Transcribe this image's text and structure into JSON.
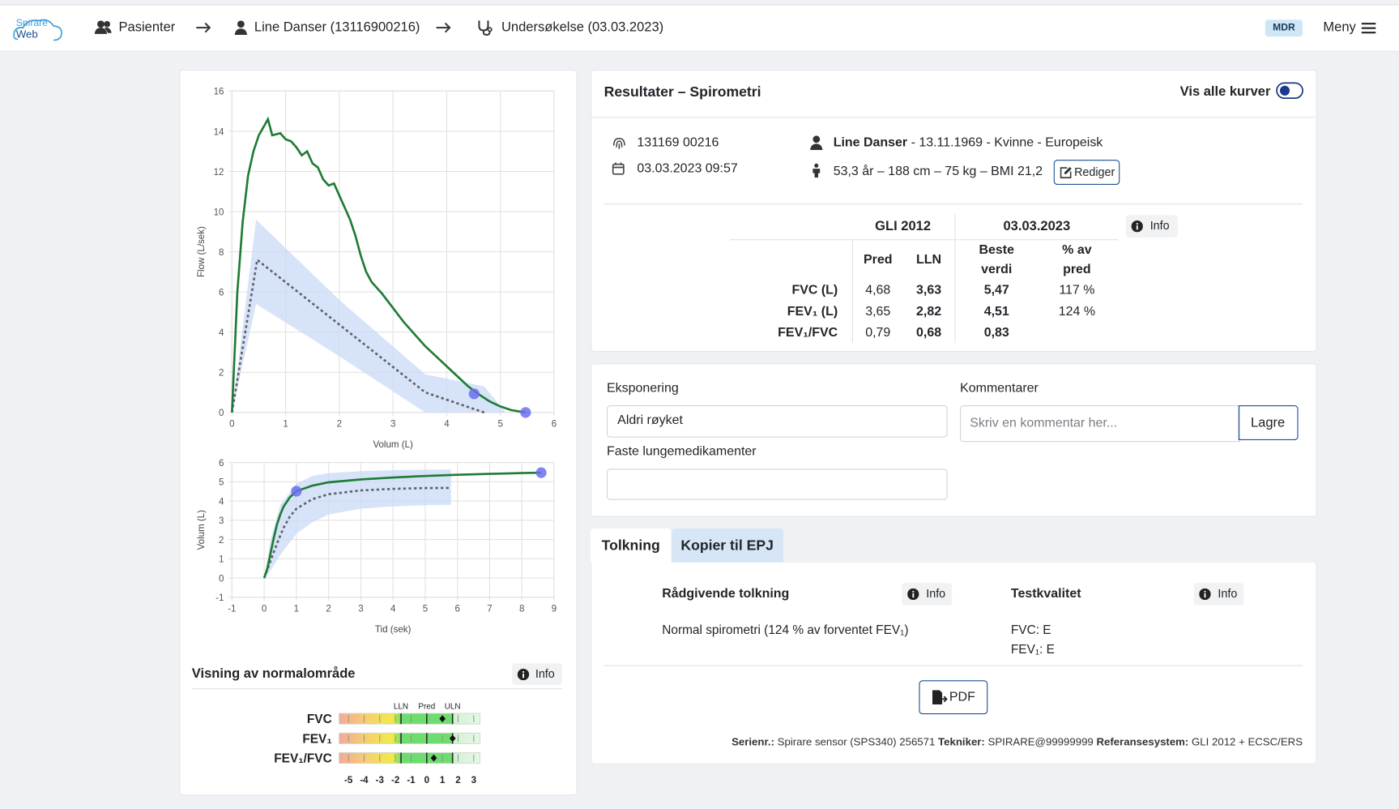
{
  "header": {
    "logo_top": "Spirare",
    "logo_bottom": "Web",
    "breadcrumbs": [
      "Pasienter",
      "Line Danser (13116900216)",
      "Undersøkelse (03.03.2023)"
    ],
    "badge": "MDR",
    "menu": "Meny"
  },
  "results": {
    "title": "Resultater – Spirometri",
    "toggle_label": "Vis alle kurver",
    "patient_id": "131169 00216",
    "exam_time": "03.03.2023 09:57",
    "patient_name": "Line Danser",
    "patient_details": "- 13.11.1969 - Kvinne - Europeisk",
    "body_metrics": "53,3 år – 188 cm – 75 kg – BMI 21,2",
    "edit_button": "Rediger",
    "table": {
      "reference": "GLI 2012",
      "date": "03.03.2023",
      "info": "Info",
      "columns": [
        "Pred",
        "LLN",
        "Beste verdi",
        "% av pred"
      ],
      "rows": [
        {
          "label": "FVC (L)",
          "cells": [
            "4,68",
            "3,63",
            "5,47",
            "117 %"
          ]
        },
        {
          "label": "FEV₁ (L)",
          "cells": [
            "3,65",
            "2,82",
            "4,51",
            "124 %"
          ]
        },
        {
          "label": "FEV₁/FVC",
          "cells": [
            "0,79",
            "0,68",
            "0,83"
          ]
        }
      ]
    }
  },
  "form": {
    "exposure_label": "Eksponering",
    "exposure_value": "Aldri røyket",
    "meds_label": "Faste lungemedikamenter",
    "comments_label": "Kommentarer",
    "comments_placeholder": "Skriv en kommentar her...",
    "save_button": "Lagre"
  },
  "tabs": [
    "Tolkning",
    "Kopier til EPJ"
  ],
  "interpretation": {
    "advice_title": "Rådgivende tolkning",
    "advice_info": "Info",
    "advice_text": "Normal spirometri (124 % av forventet FEV₁)",
    "quality_title": "Testkvalitet",
    "quality_info": "Info",
    "quality_lines": [
      "FVC: E",
      "FEV₁: E"
    ],
    "pdf_button": "PDF",
    "footer": [
      {
        "label": "Serienr.:",
        "value": "Spirare sensor (SPS340) 256571"
      },
      {
        "label": "Tekniker:",
        "value": "SPIRARE@99999999"
      },
      {
        "label": "Referansesystem:",
        "value": "GLI 2012 + ECSC/ERS"
      }
    ]
  },
  "chart_data": [
    {
      "type": "line",
      "xlabel": "Volum (L)",
      "ylabel": "Flow (L/sek)",
      "xlim": [
        0,
        6
      ],
      "ylim": [
        0,
        16
      ],
      "xticks": [
        0,
        1,
        2,
        3,
        4,
        5,
        6
      ],
      "yticks": [
        0,
        2,
        4,
        6,
        8,
        10,
        12,
        14,
        16
      ],
      "grid": true,
      "band": {
        "color": "#c9d9f5",
        "x": [
          0,
          0.45,
          2.0,
          3.6,
          4.7,
          5.1
        ],
        "upper": [
          0,
          9.6,
          5.6,
          1.9,
          1.3,
          0
        ],
        "lower": [
          0,
          5.4,
          2.8,
          0,
          0,
          0
        ]
      },
      "series": [
        {
          "color": "#1e7b34",
          "x": [
            0,
            0.05,
            0.1,
            0.2,
            0.3,
            0.4,
            0.5,
            0.67,
            0.75,
            0.9,
            1.0,
            1.1,
            1.2,
            1.3,
            1.4,
            1.5,
            1.6,
            1.7,
            1.8,
            1.9,
            2.0,
            2.1,
            2.2,
            2.3,
            2.4,
            2.5,
            2.6,
            2.8,
            3.0,
            3.2,
            3.4,
            3.6,
            3.8,
            4.0,
            4.2,
            4.4,
            4.6,
            4.8,
            5.0,
            5.2,
            5.47
          ],
          "y": [
            0,
            3,
            6,
            9.5,
            11.8,
            13,
            13.8,
            14.6,
            13.8,
            13.9,
            13.6,
            13.5,
            13.2,
            12.8,
            13.0,
            12.4,
            12.2,
            11.6,
            11.3,
            11.4,
            10.8,
            10.2,
            9.6,
            8.8,
            7.8,
            7.0,
            6.5,
            5.9,
            5.2,
            4.5,
            3.9,
            3.3,
            2.8,
            2.3,
            1.8,
            1.3,
            0.9,
            0.55,
            0.3,
            0.12,
            0
          ]
        },
        {
          "color": "#5f6368",
          "dash": true,
          "x": [
            0,
            0.47,
            3.6,
            4.7
          ],
          "y": [
            0,
            7.6,
            1.0,
            0
          ]
        }
      ],
      "markers": {
        "color": "#6b6ff0",
        "points": [
          {
            "x": 4.51,
            "y": 0.93
          },
          {
            "x": 5.47,
            "y": 0
          }
        ]
      }
    },
    {
      "type": "line",
      "xlabel": "Tid (sek)",
      "ylabel": "Volum (L)",
      "xlim": [
        -1,
        9
      ],
      "ylim": [
        -1,
        6
      ],
      "xticks": [
        -1,
        0,
        1,
        2,
        3,
        4,
        5,
        6,
        7,
        8,
        9
      ],
      "yticks": [
        -1,
        0,
        1,
        2,
        3,
        4,
        5,
        6
      ],
      "grid": true,
      "band": {
        "color": "#c9d9f5",
        "x": [
          0,
          0.2,
          0.5,
          1,
          1.5,
          2,
          3,
          4,
          5,
          5.8
        ],
        "upper": [
          0,
          2.0,
          3.8,
          4.9,
          5.3,
          5.45,
          5.55,
          5.6,
          5.62,
          5.63
        ],
        "lower": [
          0,
          0.4,
          1.2,
          2.3,
          2.9,
          3.3,
          3.6,
          3.72,
          3.78,
          3.8
        ]
      },
      "series": [
        {
          "color": "#1e7b34",
          "x": [
            0,
            0.1,
            0.2,
            0.3,
            0.4,
            0.5,
            0.6,
            0.8,
            1.0,
            1.5,
            2,
            3,
            4,
            5,
            6,
            7,
            8,
            8.6
          ],
          "y": [
            0,
            0.5,
            1.3,
            2.1,
            2.8,
            3.3,
            3.7,
            4.2,
            4.51,
            4.8,
            4.97,
            5.12,
            5.22,
            5.3,
            5.36,
            5.41,
            5.45,
            5.47
          ]
        },
        {
          "color": "#5f6368",
          "dash": true,
          "x": [
            0,
            0.2,
            0.4,
            0.6,
            0.8,
            1.0,
            1.5,
            2,
            3,
            4,
            5,
            5.8
          ],
          "y": [
            0,
            0.9,
            1.8,
            2.6,
            3.2,
            3.6,
            4.1,
            4.35,
            4.55,
            4.63,
            4.67,
            4.68
          ]
        }
      ],
      "markers": {
        "color": "#6b6ff0",
        "points": [
          {
            "x": 1,
            "y": 4.51
          },
          {
            "x": 8.6,
            "y": 5.47
          }
        ]
      }
    },
    {
      "type": "z-score",
      "title": "Visning av normalområde",
      "info": "Info",
      "categories": [
        "FVC",
        "FEV₁",
        "FEV₁/FVC"
      ],
      "values": [
        1.0,
        1.65,
        0.45
      ],
      "xlim": [
        -5.6,
        3.4
      ],
      "xticks": [
        -5,
        -4,
        -3,
        -2,
        -1,
        0,
        1,
        2,
        3
      ],
      "reference_lines": [
        {
          "label": "LLN",
          "value": -1.645
        },
        {
          "label": "Pred",
          "value": 0
        },
        {
          "label": "ULN",
          "value": 1.645
        }
      ],
      "marker_color": "#111111"
    }
  ]
}
